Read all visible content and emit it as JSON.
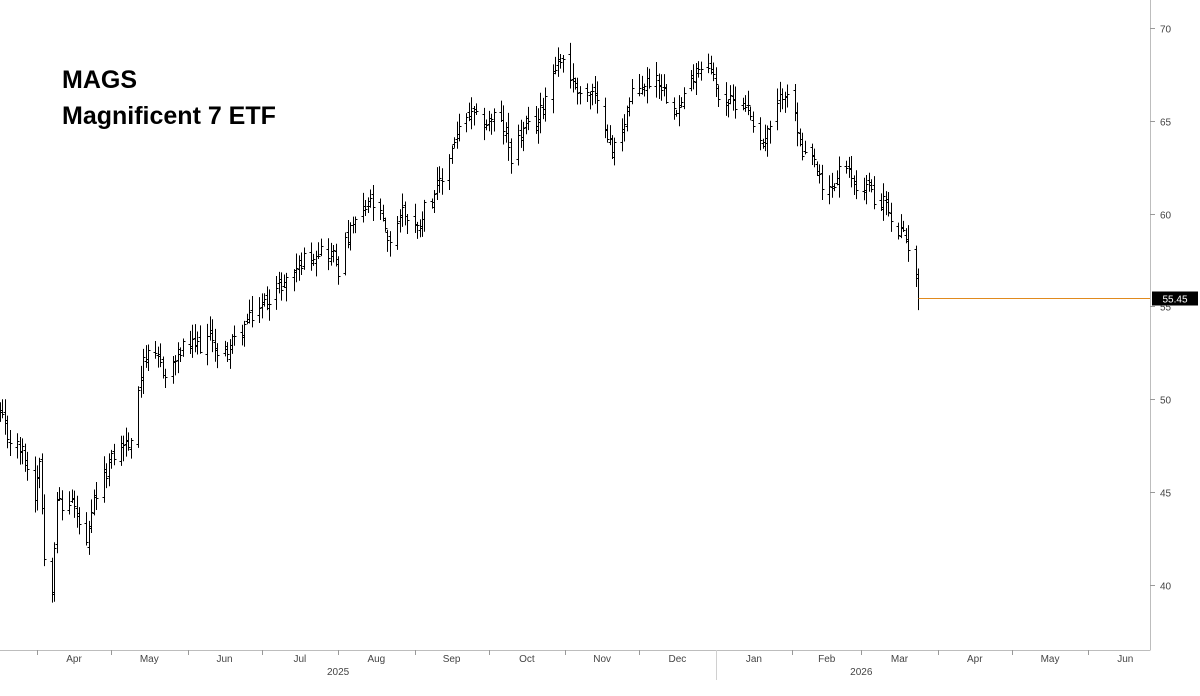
{
  "title": "MAGS",
  "subtitle": "Magnificent 7 ETF",
  "chart_data": {
    "type": "ohlc",
    "y_ticks": [
      40,
      45,
      50,
      55,
      60,
      65,
      70
    ],
    "ylim": [
      36.5,
      71.5
    ],
    "x_start": "2025-03-17",
    "x_end": "2026-06-26",
    "month_ticks": [
      {
        "label": "Apr",
        "date": "2025-04-01"
      },
      {
        "label": "May",
        "date": "2025-05-01"
      },
      {
        "label": "Jun",
        "date": "2025-06-01"
      },
      {
        "label": "Jul",
        "date": "2025-07-01"
      },
      {
        "label": "Aug",
        "date": "2025-08-01"
      },
      {
        "label": "Sep",
        "date": "2025-09-01"
      },
      {
        "label": "Oct",
        "date": "2025-10-01"
      },
      {
        "label": "Nov",
        "date": "2025-11-01"
      },
      {
        "label": "Dec",
        "date": "2025-12-01"
      },
      {
        "label": "Jan",
        "date": "2026-01-01"
      },
      {
        "label": "Feb",
        "date": "2026-02-01"
      },
      {
        "label": "Mar",
        "date": "2026-03-01"
      },
      {
        "label": "Apr",
        "date": "2026-04-01"
      },
      {
        "label": "May",
        "date": "2026-05-01"
      },
      {
        "label": "Jun",
        "date": "2026-06-01"
      }
    ],
    "year_labels": [
      {
        "label": "2025",
        "date": "2025-08-01"
      },
      {
        "label": "2026",
        "date": "2026-03-01"
      }
    ],
    "year_separator": "2026-01-01",
    "last_price": {
      "value": 55.45,
      "label": "55.45",
      "color": "#e08a1e"
    },
    "anchors": [
      [
        "2025-03-17",
        49.2
      ],
      [
        "2025-03-20",
        48.0
      ],
      [
        "2025-03-26",
        47.2
      ],
      [
        "2025-03-31",
        44.8
      ],
      [
        "2025-04-02",
        47.0
      ],
      [
        "2025-04-04",
        41.5
      ],
      [
        "2025-04-07",
        40.0
      ],
      [
        "2025-04-09",
        44.8
      ],
      [
        "2025-04-11",
        44.0
      ],
      [
        "2025-04-15",
        44.6
      ],
      [
        "2025-04-21",
        42.0
      ],
      [
        "2025-04-24",
        44.5
      ],
      [
        "2025-04-30",
        46.5
      ],
      [
        "2025-05-02",
        47.0
      ],
      [
        "2025-05-06",
        47.7
      ],
      [
        "2025-05-09",
        47.5
      ],
      [
        "2025-05-12",
        50.6
      ],
      [
        "2025-05-14",
        52.4
      ],
      [
        "2025-05-21",
        52.0
      ],
      [
        "2025-05-23",
        51.2
      ],
      [
        "2025-05-30",
        52.8
      ],
      [
        "2025-06-06",
        52.9
      ],
      [
        "2025-06-11",
        53.5
      ],
      [
        "2025-06-13",
        52.2
      ],
      [
        "2025-06-20",
        53.2
      ],
      [
        "2025-06-27",
        54.5
      ],
      [
        "2025-07-03",
        55.4
      ],
      [
        "2025-07-10",
        56.3
      ],
      [
        "2025-07-18",
        57.6
      ],
      [
        "2025-07-25",
        58.1
      ],
      [
        "2025-07-30",
        57.8
      ],
      [
        "2025-08-01",
        57.0
      ],
      [
        "2025-08-04",
        58.4
      ],
      [
        "2025-08-08",
        59.6
      ],
      [
        "2025-08-14",
        60.6
      ],
      [
        "2025-08-19",
        59.6
      ],
      [
        "2025-08-21",
        58.3
      ],
      [
        "2025-08-27",
        60.2
      ],
      [
        "2025-09-02",
        59.2
      ],
      [
        "2025-09-05",
        60.4
      ],
      [
        "2025-09-12",
        61.8
      ],
      [
        "2025-09-17",
        64.0
      ],
      [
        "2025-09-23",
        65.3
      ],
      [
        "2025-09-30",
        64.9
      ],
      [
        "2025-10-03",
        65.3
      ],
      [
        "2025-10-07",
        64.6
      ],
      [
        "2025-10-10",
        63.1
      ],
      [
        "2025-10-14",
        64.3
      ],
      [
        "2025-10-21",
        65.1
      ],
      [
        "2025-10-28",
        68.1
      ],
      [
        "2025-10-31",
        68.4
      ],
      [
        "2025-11-04",
        67.1
      ],
      [
        "2025-11-07",
        66.6
      ],
      [
        "2025-11-12",
        66.4
      ],
      [
        "2025-11-17",
        64.9
      ],
      [
        "2025-11-20",
        63.3
      ],
      [
        "2025-11-25",
        65.1
      ],
      [
        "2025-11-28",
        66.4
      ],
      [
        "2025-12-03",
        67.0
      ],
      [
        "2025-12-08",
        67.4
      ],
      [
        "2025-12-12",
        66.4
      ],
      [
        "2025-12-17",
        65.7
      ],
      [
        "2025-12-24",
        67.8
      ],
      [
        "2025-12-29",
        68.2
      ],
      [
        "2026-01-02",
        66.4
      ],
      [
        "2026-01-07",
        66.0
      ],
      [
        "2026-01-13",
        66.0
      ],
      [
        "2026-01-16",
        65.0
      ],
      [
        "2026-01-20",
        63.8
      ],
      [
        "2026-01-23",
        64.6
      ],
      [
        "2026-01-28",
        66.5
      ],
      [
        "2026-01-30",
        66.7
      ],
      [
        "2026-02-03",
        64.5
      ],
      [
        "2026-02-05",
        63.0
      ],
      [
        "2026-02-10",
        62.8
      ],
      [
        "2026-02-13",
        61.2
      ],
      [
        "2026-02-18",
        61.5
      ],
      [
        "2026-02-20",
        62.5
      ],
      [
        "2026-02-25",
        62.0
      ],
      [
        "2026-02-27",
        61.4
      ],
      [
        "2026-03-04",
        61.6
      ],
      [
        "2026-03-06",
        60.6
      ],
      [
        "2026-03-11",
        60.7
      ],
      [
        "2026-03-13",
        59.3
      ],
      [
        "2026-03-17",
        59.0
      ],
      [
        "2026-03-20",
        58.3
      ],
      [
        "2026-03-23",
        56.7
      ],
      [
        "2026-03-24",
        55.45
      ]
    ]
  }
}
